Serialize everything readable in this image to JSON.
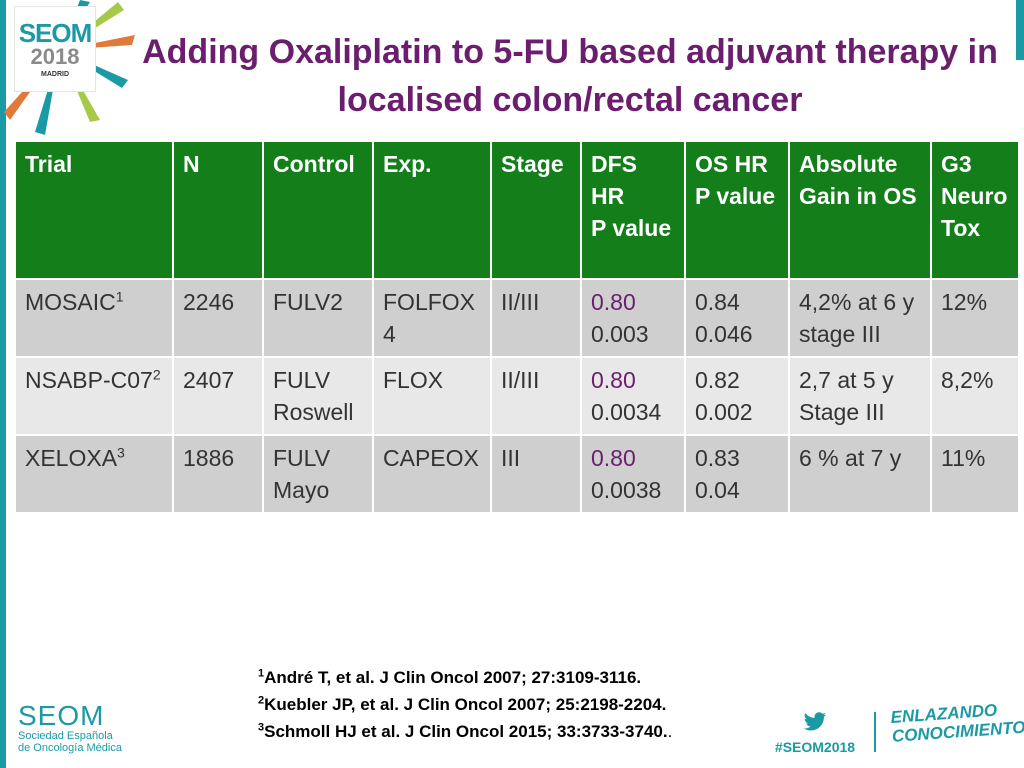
{
  "logo": {
    "name": "SEOM",
    "year": "2018",
    "city": "MADRID"
  },
  "title": "Adding Oxaliplatin to 5-FU based adjuvant therapy in localised colon/rectal cancer",
  "table": {
    "headers": [
      [
        "Trial"
      ],
      [
        "N"
      ],
      [
        "Control"
      ],
      [
        "Exp."
      ],
      [
        "Stage"
      ],
      [
        "DFS HR",
        "P value"
      ],
      [
        "OS HR",
        "P value"
      ],
      [
        "Absolute",
        "Gain in OS"
      ],
      [
        "G3",
        "Neuro",
        "Tox"
      ]
    ],
    "rows": [
      {
        "trial": "MOSAIC",
        "sup": "1",
        "n": "2246",
        "control": "FULV2",
        "exp": "FOLFOX 4",
        "stage": "II/III",
        "dfs_hr": "0.80",
        "dfs_p": "0.003",
        "os_hr": "0.84",
        "os_p": "0.046",
        "gain": "4,2% at 6 y stage III",
        "tox": "12%"
      },
      {
        "trial": "NSABP-C07",
        "sup": "2",
        "n": "2407",
        "control": "FULV Roswell",
        "exp": "FLOX",
        "stage": "II/III",
        "dfs_hr": "0.80",
        "dfs_p": "0.0034",
        "os_hr": "0.82",
        "os_p": "0.002",
        "gain": "2,7 at 5 y Stage III",
        "tox": "8,2%"
      },
      {
        "trial": "XELOXA",
        "sup": "3",
        "n": "1886",
        "control": "FULV Mayo",
        "exp": "CAPEOX",
        "stage": "III",
        "dfs_hr": "0.80",
        "dfs_p": "0.0038",
        "os_hr": "0.83",
        "os_p": "0.04",
        "gain": "6 % at 7 y",
        "tox": "11%"
      }
    ]
  },
  "references": [
    {
      "sup": "1",
      "text": "André T, et al. J Clin Oncol 2007; 27:3109-3116."
    },
    {
      "sup": "2",
      "text": "Kuebler JP, et al. J Clin Oncol 2007; 25:2198-2204."
    },
    {
      "sup": "3",
      "text": "Schmoll HJ et al. J Clin Oncol 2015;  33:3733-3740."
    }
  ],
  "reference_period": ".",
  "footer": {
    "seom": "SEOM",
    "society_line1": "Sociedad Española",
    "society_line2": "de Oncología Médica",
    "hashtag": "#SEOM2018",
    "slogan_line1": "ENLAZANDO",
    "slogan_line2": "CONOCIMIENTO"
  },
  "colors": {
    "teal": "#1b9aa5",
    "purple": "#6b1e6e",
    "header_green": "#147e1a",
    "row_dark": "#cfcfcf",
    "row_light": "#e8e8e8"
  },
  "icons": [
    "twitter-bird-icon"
  ]
}
